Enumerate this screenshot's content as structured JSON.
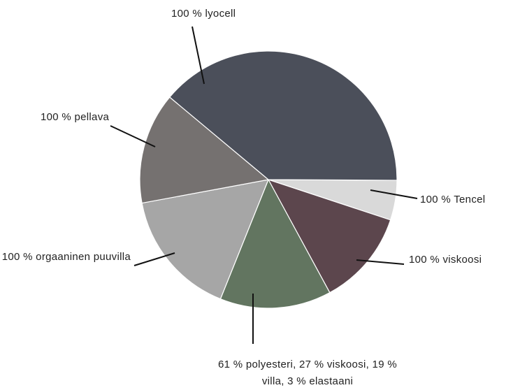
{
  "chart_data": {
    "type": "pie",
    "categories": [
      "100 % Tencel",
      "100 % viskoosi",
      "61 % polyesteri, 27 % viskoosi, 19 % villa, 3 % elastaani",
      "100 % orgaaninen puuvilla",
      "100 % pellava",
      "100 % lyocell"
    ],
    "values": [
      5,
      12,
      14,
      16,
      14,
      39
    ],
    "colors": [
      "#d9d9d9",
      "#5c464d",
      "#627560",
      "#a6a6a6",
      "#757170",
      "#4b4f5a"
    ]
  }
}
